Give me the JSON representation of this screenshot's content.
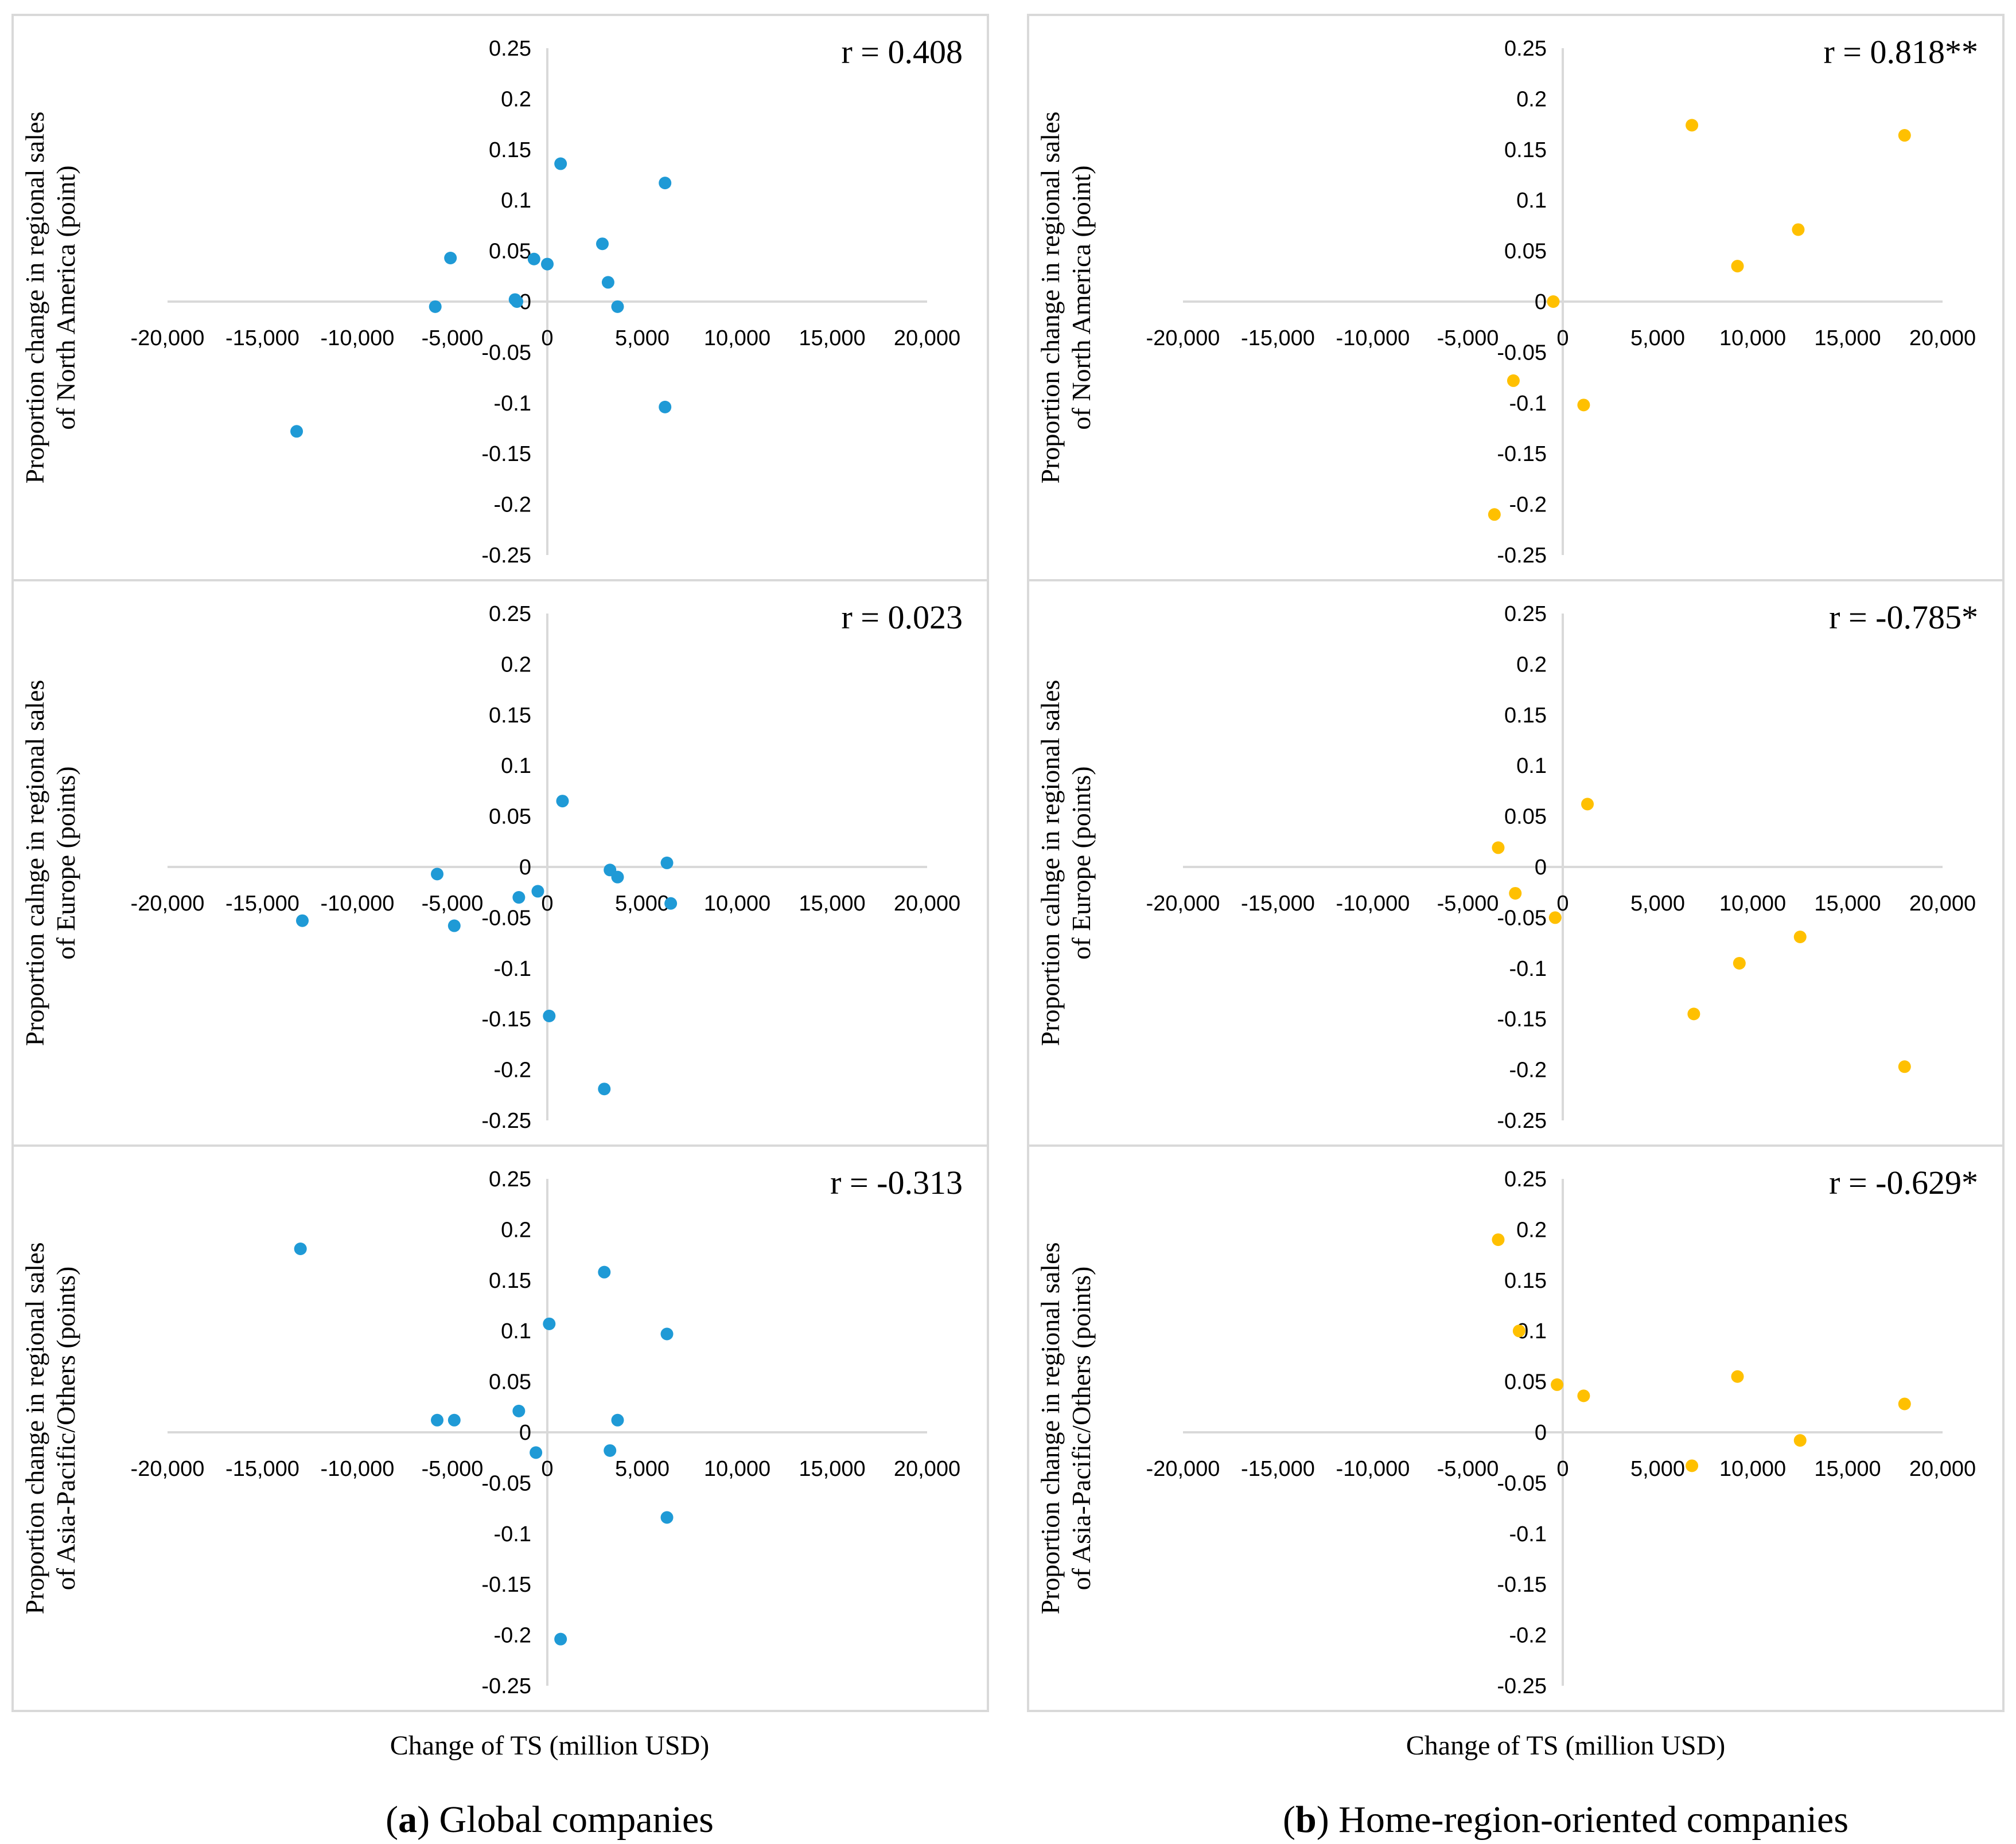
{
  "colors": {
    "global": "#1f9ad6",
    "home": "#ffc000"
  },
  "xlabel_left": "Change of TS (million USD)",
  "xlabel_right": "Change of TS (million USD)",
  "caption_left": {
    "tag": "a",
    "text": "Global companies"
  },
  "caption_right": {
    "tag": "b",
    "text": "Home-region-oriented companies"
  },
  "x_ticks": [
    "-20,000",
    "-15,000",
    "-10,000",
    "-5,000",
    "0",
    "5,000",
    "10,000",
    "15,000",
    "20,000"
  ],
  "y_ticks": [
    "0.25",
    "0.2",
    "0.15",
    "0.1",
    "0.05",
    "0",
    "-0.05",
    "-0.1",
    "-0.15",
    "-0.2",
    "-0.25"
  ],
  "rows": [
    {
      "ylabel": [
        "Proportion change in regional sales",
        "of North America (point)"
      ]
    },
    {
      "ylabel": [
        "Proportion calnge in regional sales",
        "of Europe (points)"
      ]
    },
    {
      "ylabel": [
        "Proportion change in regional sales",
        "of Asia-Pacific/Others (points)"
      ]
    }
  ],
  "chart_data": [
    {
      "type": "scatter",
      "group": "Global companies",
      "region": "North America",
      "r_label": "r = 0.408",
      "xlim": [
        -20000,
        20000
      ],
      "ylim": [
        -0.25,
        0.25
      ],
      "points": [
        [
          -13200,
          -0.128
        ],
        [
          -5900,
          -0.005
        ],
        [
          -5100,
          0.043
        ],
        [
          -1700,
          0.002
        ],
        [
          -1600,
          0.0
        ],
        [
          -700,
          0.042
        ],
        [
          0,
          0.037
        ],
        [
          700,
          0.136
        ],
        [
          2900,
          0.057
        ],
        [
          3200,
          0.019
        ],
        [
          3700,
          -0.005
        ],
        [
          6200,
          0.117
        ],
        [
          6200,
          -0.104
        ]
      ]
    },
    {
      "type": "scatter",
      "group": "Home-region-oriented companies",
      "region": "North America",
      "r_label": "r = 0.818**",
      "xlim": [
        -20000,
        20000
      ],
      "ylim": [
        -0.25,
        0.25
      ],
      "points": [
        [
          -3600,
          -0.21
        ],
        [
          -2600,
          -0.078
        ],
        [
          -500,
          0.0
        ],
        [
          1100,
          -0.102
        ],
        [
          6800,
          0.174
        ],
        [
          9200,
          0.035
        ],
        [
          12400,
          0.071
        ],
        [
          18000,
          0.164
        ]
      ]
    },
    {
      "type": "scatter",
      "group": "Global companies",
      "region": "Europe",
      "r_label": "r = 0.023",
      "xlim": [
        -20000,
        20000
      ],
      "ylim": [
        -0.25,
        0.25
      ],
      "points": [
        [
          -12900,
          -0.053
        ],
        [
          -5800,
          -0.007
        ],
        [
          -4900,
          -0.058
        ],
        [
          -1500,
          -0.03
        ],
        [
          -500,
          -0.024
        ],
        [
          100,
          -0.147
        ],
        [
          800,
          0.065
        ],
        [
          3000,
          -0.219
        ],
        [
          3300,
          -0.003
        ],
        [
          3700,
          -0.01
        ],
        [
          6300,
          0.004
        ],
        [
          6500,
          -0.036
        ]
      ]
    },
    {
      "type": "scatter",
      "group": "Home-region-oriented companies",
      "region": "Europe",
      "r_label": "r = -0.785*",
      "xlim": [
        -20000,
        20000
      ],
      "ylim": [
        -0.25,
        0.25
      ],
      "points": [
        [
          -3400,
          0.019
        ],
        [
          -2500,
          -0.026
        ],
        [
          -400,
          -0.05
        ],
        [
          1300,
          0.062
        ],
        [
          6900,
          -0.145
        ],
        [
          9300,
          -0.095
        ],
        [
          12500,
          -0.069
        ],
        [
          18000,
          -0.197
        ]
      ]
    },
    {
      "type": "scatter",
      "group": "Global companies",
      "region": "Asia-Pacific/Others",
      "r_label": "r = -0.313",
      "xlim": [
        -20000,
        20000
      ],
      "ylim": [
        -0.25,
        0.25
      ],
      "points": [
        [
          -13000,
          0.181
        ],
        [
          -5800,
          0.012
        ],
        [
          -4900,
          0.012
        ],
        [
          -1500,
          0.021
        ],
        [
          -600,
          -0.02
        ],
        [
          100,
          0.107
        ],
        [
          700,
          -0.204
        ],
        [
          3000,
          0.158
        ],
        [
          3300,
          -0.018
        ],
        [
          3700,
          0.012
        ],
        [
          6300,
          0.097
        ],
        [
          6300,
          -0.084
        ]
      ]
    },
    {
      "type": "scatter",
      "group": "Home-region-oriented companies",
      "region": "Asia-Pacific/Others",
      "r_label": "r = -0.629*",
      "xlim": [
        -20000,
        20000
      ],
      "ylim": [
        -0.25,
        0.25
      ],
      "points": [
        [
          -3400,
          0.19
        ],
        [
          -2300,
          0.1
        ],
        [
          -300,
          0.047
        ],
        [
          1100,
          0.036
        ],
        [
          6800,
          -0.033
        ],
        [
          9200,
          0.055
        ],
        [
          12500,
          -0.008
        ],
        [
          18000,
          0.028
        ]
      ]
    }
  ]
}
